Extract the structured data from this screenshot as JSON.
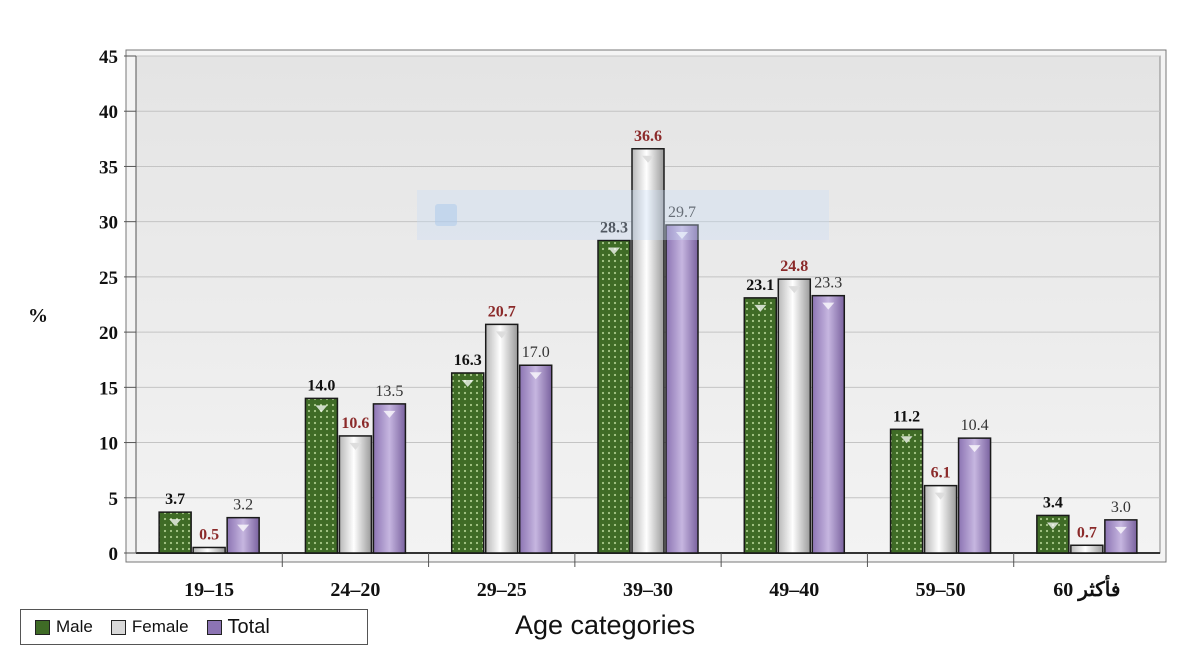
{
  "chart_data": {
    "type": "bar",
    "categories": [
      "19–15",
      "24–20",
      "29–25",
      "39–30",
      "49–40",
      "59–50",
      "60 فأكثر"
    ],
    "series": [
      {
        "name": "Male",
        "values": [
          3.7,
          14.0,
          16.3,
          28.3,
          23.1,
          11.2,
          3.4
        ],
        "labels": [
          "3.7",
          "14.0",
          "16.3",
          "28.3",
          "23.1",
          "11.2",
          "3.4"
        ],
        "color": "#4a7a2c",
        "label_color": "#111111"
      },
      {
        "name": "Female",
        "values": [
          0.5,
          10.6,
          20.7,
          36.6,
          24.8,
          6.1,
          0.7
        ],
        "labels": [
          "0.5",
          "10.6",
          "20.7",
          "36.6",
          "24.8",
          "6.1",
          "0.7"
        ],
        "color": "#f0f0f0",
        "label_color": "#8b2a2a"
      },
      {
        "name": "Total",
        "values": [
          3.2,
          13.5,
          17.0,
          29.7,
          23.3,
          10.4,
          3.0
        ],
        "labels": [
          "3.2",
          "13.5",
          "17.0",
          "29.7",
          "23.3",
          "10.4",
          "3.0"
        ],
        "color": "#a58fc4",
        "label_color": "#333333"
      }
    ],
    "ylabel": "%",
    "xlabel": "Age categories",
    "ylim": [
      0,
      45
    ],
    "yticks": [
      "0",
      "5",
      "10",
      "15",
      "20",
      "25",
      "30",
      "35",
      "40",
      "45"
    ],
    "grid": true,
    "legend_position": "bottom-left",
    "watermark": "Rectangular Snip"
  }
}
